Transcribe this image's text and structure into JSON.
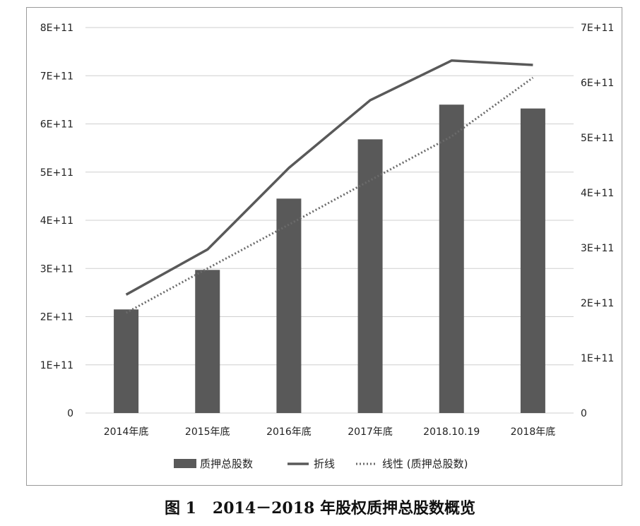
{
  "caption": "图 1   2014－2018 年股权质押总股数概览",
  "chart_data": {
    "type": "bar",
    "categories": [
      "2014年底",
      "2015年底",
      "2016年底",
      "2017年底",
      "2018.10.19",
      "2018年底"
    ],
    "series": [
      {
        "name": "质押总股数",
        "kind": "bar",
        "axis": "left",
        "values": [
          215000000000.0,
          297000000000.0,
          445000000000.0,
          568000000000.0,
          640000000000.0,
          632000000000.0
        ],
        "color": "#595959"
      },
      {
        "name": "折线",
        "kind": "line",
        "axis": "right",
        "values": [
          215000000000.0,
          297000000000.0,
          445000000000.0,
          568000000000.0,
          640000000000.0,
          632000000000.0
        ],
        "color": "#595959"
      },
      {
        "name": "线性 (质押总股数)",
        "kind": "trendline",
        "axis": "left",
        "values": [
          208000000000.0,
          300000000000.0,
          391000000000.0,
          483000000000.0,
          574000000000.0,
          696000000000.0
        ],
        "color": "#6b6b6b"
      }
    ],
    "y_left": {
      "min": 0,
      "max": 800000000000.0,
      "ticks": [
        "0",
        "1E+11",
        "2E+11",
        "3E+11",
        "4E+11",
        "5E+11",
        "6E+11",
        "7E+11",
        "8E+11"
      ]
    },
    "y_right": {
      "min": 0,
      "max": 700000000000.0,
      "ticks": [
        "0",
        "1E+11",
        "2E+11",
        "3E+11",
        "4E+11",
        "5E+11",
        "6E+11",
        "7E+11"
      ]
    },
    "grid": true,
    "legend_position": "bottom"
  }
}
